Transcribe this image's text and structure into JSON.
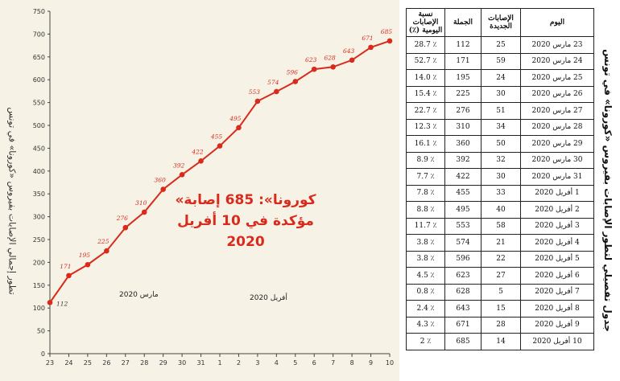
{
  "chart_data": {
    "type": "line",
    "title": "«كورونا»: 685 إصابة مؤكدة في 10 أفريل 2020",
    "ylabel": "تطور إجمالي الإصابات بفيروس «كورونا» في تونس",
    "xlabel": "",
    "ylim": [
      0,
      750
    ],
    "yticks": [
      0,
      50,
      100,
      150,
      200,
      250,
      300,
      350,
      400,
      450,
      500,
      550,
      600,
      650,
      700,
      750
    ],
    "x": [
      "23",
      "24",
      "25",
      "26",
      "27",
      "28",
      "29",
      "30",
      "31",
      "1",
      "2",
      "3",
      "4",
      "5",
      "6",
      "7",
      "8",
      "9",
      "10"
    ],
    "series": [
      {
        "name": "",
        "values": [
          112,
          171,
          195,
          225,
          276,
          310,
          360,
          392,
          422,
          455,
          495,
          553,
          574,
          596,
          623,
          628,
          643,
          671,
          685
        ]
      }
    ],
    "annotations": [
      "مارس 2020",
      "أفريل 2020"
    ],
    "grid": false,
    "line_color": "#d92a1c"
  },
  "table": {
    "title": "جدول تفصيلي لتطور الإصابات بفيروس «كورونا» في تونس",
    "headers": [
      "نسبة الإصابات اليومية (٪)",
      "الجملة",
      "الإصابات الجديدة",
      "اليوم"
    ],
    "rows": [
      {
        "rate": "٪ 28.7",
        "total": "112",
        "new": "25",
        "day": "23 مارس 2020"
      },
      {
        "rate": "٪ 52.7",
        "total": "171",
        "new": "59",
        "day": "24 مارس 2020"
      },
      {
        "rate": "٪ 14.0",
        "total": "195",
        "new": "24",
        "day": "25 مارس 2020"
      },
      {
        "rate": "٪ 15.4",
        "total": "225",
        "new": "30",
        "day": "26 مارس 2020"
      },
      {
        "rate": "٪ 22.7",
        "total": "276",
        "new": "51",
        "day": "27 مارس 2020"
      },
      {
        "rate": "٪ 12.3",
        "total": "310",
        "new": "34",
        "day": "28 مارس 2020"
      },
      {
        "rate": "٪ 16.1",
        "total": "360",
        "new": "50",
        "day": "29 مارس 2020"
      },
      {
        "rate": "٪ 8.9",
        "total": "392",
        "new": "32",
        "day": "30 مارس 2020"
      },
      {
        "rate": "٪ 7.7",
        "total": "422",
        "new": "30",
        "day": "31 مارس 2020"
      },
      {
        "rate": "٪ 7.8",
        "total": "455",
        "new": "33",
        "day": "1 أفريل 2020"
      },
      {
        "rate": "٪ 8.8",
        "total": "495",
        "new": "40",
        "day": "2 أفريل 2020"
      },
      {
        "rate": "٪ 11.7",
        "total": "553",
        "new": "58",
        "day": "3 أفريل 2020"
      },
      {
        "rate": "٪ 3.8",
        "total": "574",
        "new": "21",
        "day": "4 أفريل 2020"
      },
      {
        "rate": "٪ 3.8",
        "total": "596",
        "new": "22",
        "day": "5 أفريل 2020"
      },
      {
        "rate": "٪ 4.5",
        "total": "623",
        "new": "27",
        "day": "6 أفريل 2020"
      },
      {
        "rate": "٪ 0.8",
        "total": "628",
        "new": "5",
        "day": "7 أفريل 2020"
      },
      {
        "rate": "٪ 2.4",
        "total": "643",
        "new": "15",
        "day": "8 أفريل 2020"
      },
      {
        "rate": "٪ 4.3",
        "total": "671",
        "new": "28",
        "day": "9 أفريل 2020"
      },
      {
        "rate": "٪ 2",
        "total": "685",
        "new": "14",
        "day": "10 أفريل 2020"
      }
    ]
  }
}
